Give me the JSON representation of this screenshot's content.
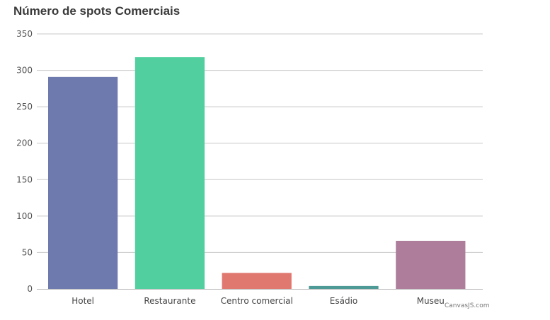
{
  "chart_data": {
    "type": "bar",
    "title": "Número de spots Comerciais",
    "xlabel": "",
    "ylabel": "",
    "categories": [
      "Hotel",
      "Restaurante",
      "Centro comercial",
      "Esádio",
      "Museu"
    ],
    "values": [
      291,
      318,
      22,
      4,
      66
    ],
    "colors": [
      "#6e79ad",
      "#51cf9f",
      "#e07870",
      "#4e9a97",
      "#ae7d9c"
    ],
    "ylim": [
      0,
      350
    ],
    "yticks": [
      0,
      50,
      100,
      150,
      200,
      250,
      300,
      350
    ],
    "grid": true,
    "legend": "none"
  },
  "credit": "CanvasJS.com"
}
